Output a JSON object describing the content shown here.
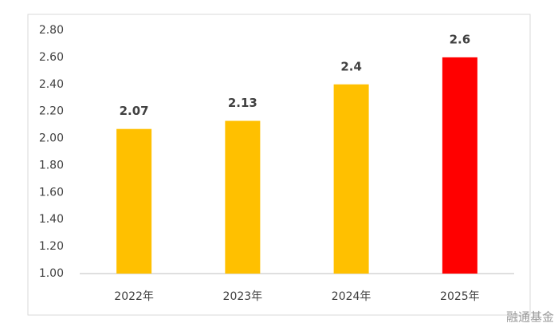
{
  "chart_data": {
    "type": "bar",
    "categories": [
      "2022年",
      "2023年",
      "2024年",
      "2025年"
    ],
    "values": [
      2.07,
      2.13,
      2.4,
      2.6
    ],
    "colors": [
      "#FFC000",
      "#FFC000",
      "#FFC000",
      "#FF0000"
    ],
    "ylim": [
      1.0,
      2.8
    ],
    "yticks": [
      {
        "value": 1.0,
        "label": "1.00"
      },
      {
        "value": 1.2,
        "label": "1.20"
      },
      {
        "value": 1.4,
        "label": "1.40"
      },
      {
        "value": 1.6,
        "label": "1.60"
      },
      {
        "value": 1.8,
        "label": "1.80"
      },
      {
        "value": 2.0,
        "label": "2.00"
      },
      {
        "value": 2.2,
        "label": "2.20"
      },
      {
        "value": 2.4,
        "label": "2.40"
      },
      {
        "value": 2.6,
        "label": "2.60"
      },
      {
        "value": 2.8,
        "label": "2.80"
      }
    ],
    "grid": false
  },
  "watermark": "融通基金"
}
